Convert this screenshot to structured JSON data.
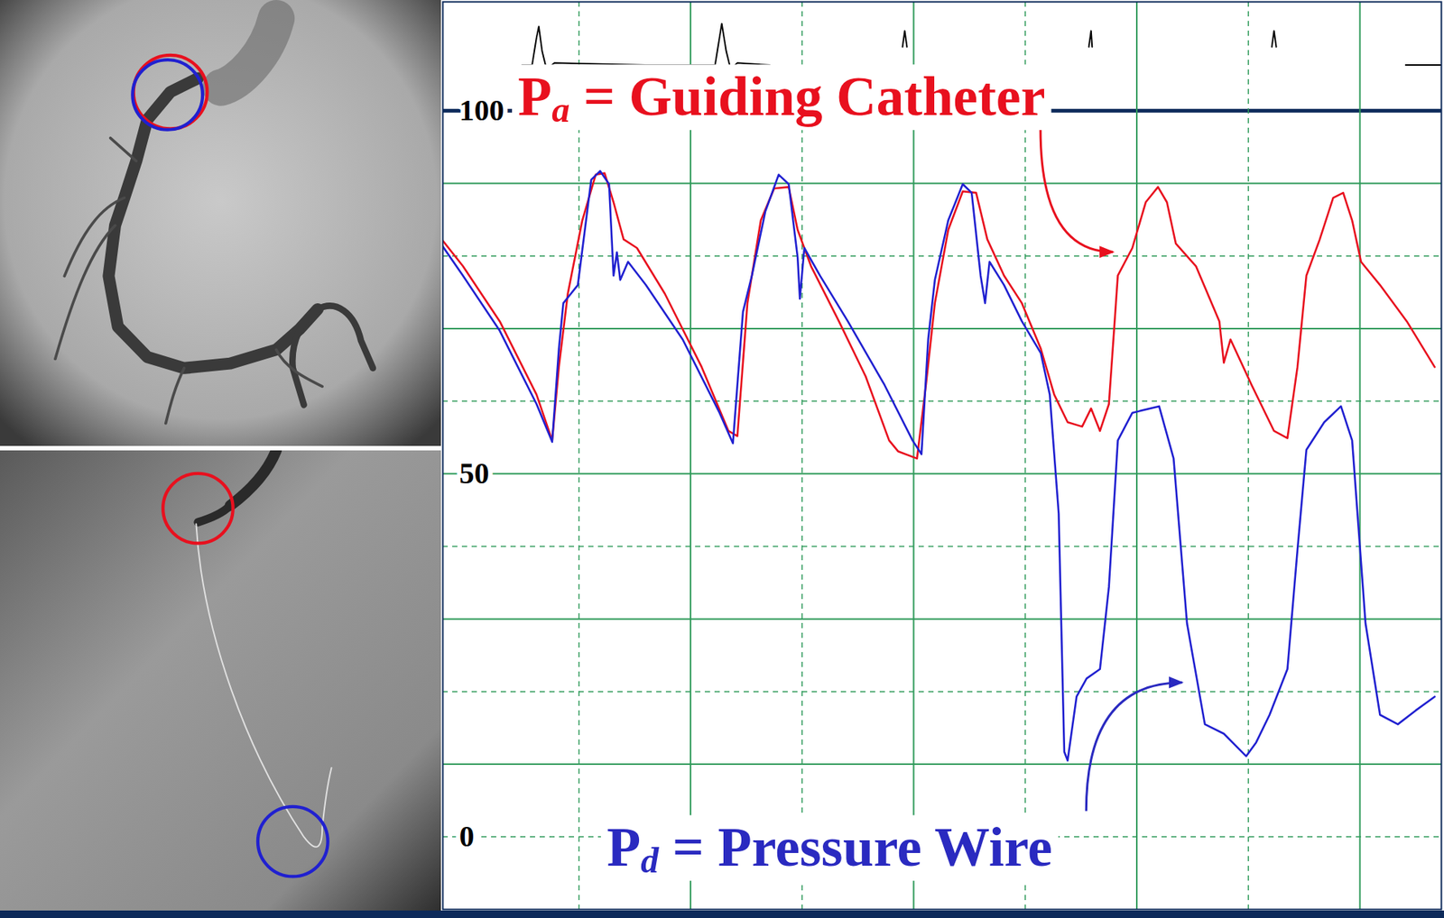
{
  "chart_data": {
    "type": "line",
    "xlim": [
      -0.22,
      8.73
    ],
    "xticks": [
      1,
      2,
      3,
      4,
      5,
      6,
      7,
      8
    ],
    "ylim": [
      -10,
      115
    ],
    "yticks": [
      0,
      50,
      100
    ],
    "grid": true,
    "tick_labels": "y",
    "series": [
      {
        "color": "#e8101e",
        "x": [
          -0.22,
          -0.04,
          0.29,
          0.62,
          0.76,
          0.82,
          0.9,
          1.03,
          1.15,
          1.23,
          1.31,
          1.4,
          1.52,
          1.77,
          2.1,
          2.34,
          2.42,
          2.51,
          2.63,
          2.75,
          2.88,
          2.96,
          3.08,
          3.33,
          3.57,
          3.78,
          3.86,
          4.03,
          4.11,
          4.19,
          4.31,
          4.44,
          4.56,
          4.66,
          4.81,
          4.97,
          5.14,
          5.26,
          5.38,
          5.51,
          5.59,
          5.67,
          5.75,
          5.83,
          5.96,
          6.08,
          6.19,
          6.27,
          6.35,
          6.53,
          6.74,
          6.78,
          6.84,
          7.03,
          7.23,
          7.35,
          7.44,
          7.52,
          7.64,
          7.76,
          7.85,
          7.93,
          8.01,
          8.18,
          8.42,
          8.67
        ],
        "values": [
          82.1,
          78.6,
          71.0,
          60.9,
          54.6,
          64.7,
          74.8,
          84.9,
          91.2,
          91.4,
          87.4,
          82.3,
          81.1,
          74.8,
          64.7,
          55.9,
          55.2,
          73.5,
          84.9,
          89.3,
          89.5,
          83.6,
          78.6,
          71.0,
          63.4,
          54.6,
          53.1,
          52.1,
          62.2,
          73.5,
          83.6,
          88.9,
          88.7,
          82.3,
          77.3,
          73.5,
          67.2,
          60.9,
          57.1,
          56.5,
          59.0,
          55.9,
          59.6,
          77.3,
          81.1,
          87.4,
          89.5,
          87.4,
          81.7,
          78.6,
          71.0,
          65.3,
          68.5,
          62.2,
          55.9,
          54.9,
          64.7,
          77.3,
          82.3,
          88.0,
          88.7,
          84.9,
          79.2,
          76.0,
          71.0,
          64.7
        ]
      },
      {
        "color": "#2020d0",
        "x": [
          -0.22,
          -0.04,
          0.29,
          0.62,
          0.76,
          0.82,
          0.86,
          0.99,
          1.11,
          1.19,
          1.27,
          1.31,
          1.34,
          1.37,
          1.44,
          1.6,
          1.93,
          2.26,
          2.38,
          2.47,
          2.55,
          2.67,
          2.79,
          2.88,
          2.96,
          2.98,
          3.02,
          3.16,
          3.41,
          3.74,
          3.99,
          4.07,
          4.13,
          4.19,
          4.31,
          4.44,
          4.52,
          4.6,
          4.64,
          4.68,
          4.81,
          4.97,
          5.14,
          5.22,
          5.3,
          5.35,
          5.38,
          5.46,
          5.55,
          5.67,
          5.75,
          5.83,
          5.96,
          6.2,
          6.33,
          6.45,
          6.61,
          6.78,
          6.98,
          7.07,
          7.19,
          7.35,
          7.44,
          7.52,
          7.68,
          7.83,
          7.93,
          8.05,
          8.18,
          8.34,
          8.5,
          8.67
        ],
        "values": [
          81.3,
          77.3,
          69.7,
          59.6,
          54.4,
          67.2,
          73.5,
          76.0,
          90.5,
          91.7,
          89.9,
          77.3,
          80.5,
          76.7,
          79.2,
          76.0,
          68.5,
          58.4,
          54.2,
          72.3,
          77.3,
          86.1,
          91.2,
          89.9,
          79.8,
          74.1,
          81.1,
          77.3,
          71.0,
          62.2,
          54.6,
          52.7,
          68.5,
          76.7,
          84.9,
          89.9,
          88.7,
          77.3,
          73.5,
          79.2,
          76.0,
          71.0,
          66.6,
          60.9,
          44.5,
          11.7,
          10.5,
          19.3,
          21.8,
          23.1,
          34.4,
          54.6,
          58.4,
          59.3,
          52.1,
          29.4,
          15.5,
          14.2,
          11.1,
          13.0,
          16.8,
          23.1,
          39.5,
          53.3,
          57.1,
          59.3,
          54.6,
          29.4,
          16.8,
          15.5,
          17.4,
          19.3
        ]
      },
      {
        "color": "#000000",
        "x": [
          0.49,
          0.58,
          0.62,
          0.64,
          0.67,
          0.71,
          0.78,
          1.6,
          2.22,
          2.26,
          2.28,
          2.32,
          2.36,
          2.42,
          2.71,
          null,
          3.9,
          3.92,
          3.94,
          null,
          5.57,
          5.59,
          5.6,
          null,
          7.21,
          7.23,
          7.25,
          null,
          8.41,
          8.73
        ],
        "values": [
          106.3,
          106.3,
          110.1,
          111.6,
          108.2,
          105.7,
          106.6,
          106.3,
          106.3,
          110.1,
          112.0,
          108.2,
          105.7,
          106.6,
          106.3,
          null,
          108.8,
          111.0,
          108.8,
          null,
          108.8,
          111.0,
          108.8,
          null,
          108.8,
          111.0,
          108.8,
          null,
          106.3,
          106.3
        ]
      }
    ],
    "annotations": [
      {
        "text": "Pa = Guiding Catheter",
        "color": "#e8101e",
        "x": 2.82,
        "y": 101.9,
        "arrow_from": [
          5.14,
          97.5
        ],
        "arrow_to": [
          5.79,
          80.5
        ]
      },
      {
        "text": "Pd = Pressure Wire",
        "color": "#2a2ac0",
        "x": 3.25,
        "y": -1.5,
        "arrow_from": [
          5.55,
          3.5
        ],
        "arrow_to": [
          6.41,
          21.2
        ]
      }
    ]
  }
}
